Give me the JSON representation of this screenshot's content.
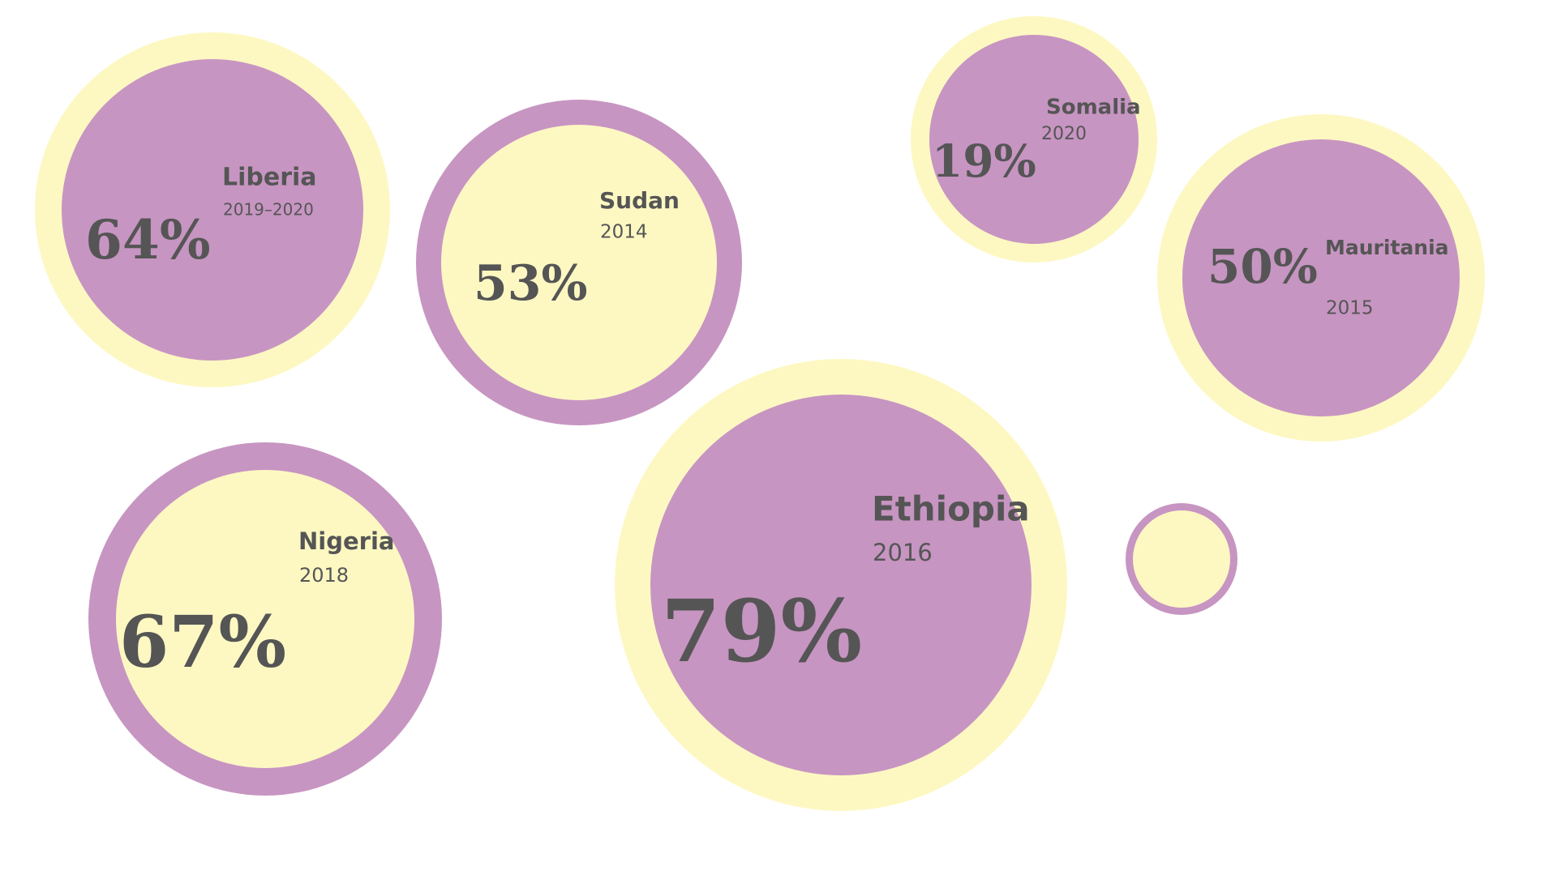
{
  "bubbles": [
    {
      "country": "Liberia",
      "years": "2019–2020",
      "percent": "64%"
    },
    {
      "country": "Sudan",
      "years": "2014",
      "percent": "53%"
    },
    {
      "country": "Somalia",
      "years": "2020",
      "percent": "19%"
    },
    {
      "country": "Mauritania",
      "years": "2015",
      "percent": "50%"
    },
    {
      "country": "Ethiopia",
      "years": "2016",
      "percent": "79%"
    },
    {
      "country": "Nigeria",
      "years": "2018",
      "percent": "67%"
    }
  ]
}
